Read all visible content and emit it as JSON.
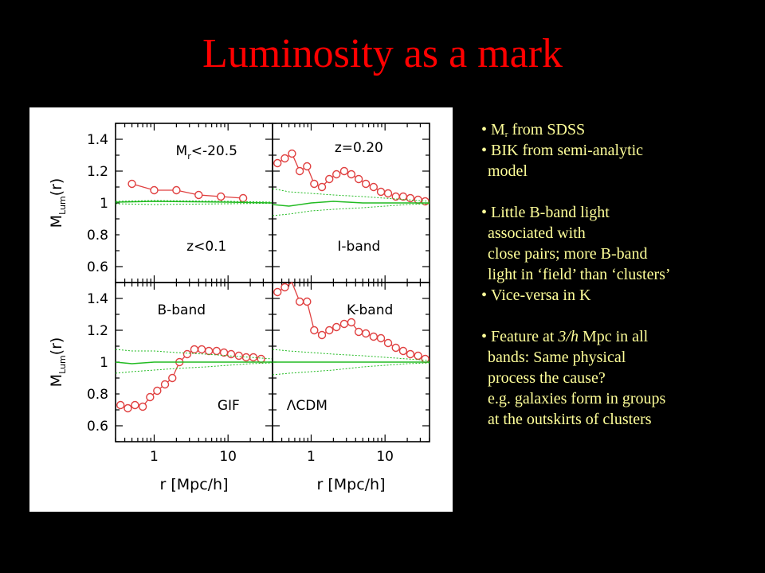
{
  "title": "Luminosity as a mark",
  "bullets": {
    "b1_main": "M",
    "b1_sub": "r",
    "b1_rest": " from SDSS",
    "b2": "BIK from semi-analytic",
    "b2_cont": "model",
    "b3": "Little B-band light",
    "b3_cont": [
      "associated with",
      "close pairs; more B-band",
      "light in ‘field’ than ‘clusters’"
    ],
    "b4": "Vice-versa in K",
    "b5_pre": "Feature at ",
    "b5_em": "3/h",
    "b5_post": " Mpc in all",
    "b5_cont": [
      "bands: Same physical",
      "process the cause?",
      "e.g. galaxies form in groups",
      "at the outskirts of clusters"
    ]
  },
  "colors": {
    "background": "#000000",
    "title": "#ff0000",
    "bullet_text": "#ffff99",
    "points": "#e04040",
    "reference": "#22bb22"
  },
  "chart_data": {
    "type": "line",
    "xlabel": "r [Mpc/h]",
    "ylabel": "M_Lum(r)",
    "xscale": "log",
    "xlim": [
      0.3,
      40
    ],
    "ylim": [
      0.5,
      1.5
    ],
    "x_ticks": [
      "1",
      "10"
    ],
    "y_ticks": [
      "1.4",
      "1.2",
      "1",
      "0.8",
      "0.6"
    ],
    "panels": [
      {
        "id": "mr",
        "labels": [
          "M_r<-20.5",
          "z<0.1"
        ],
        "series": [
          {
            "style": "points",
            "x": [
              0.5,
              1.0,
              2.0,
              4.0,
              8.0,
              16.0
            ],
            "y": [
              1.12,
              1.08,
              1.08,
              1.05,
              1.04,
              1.03
            ]
          },
          {
            "style": "solid",
            "x": [
              0.3,
              1.0,
              10.0,
              40.0
            ],
            "y": [
              1.005,
              1.01,
              1.005,
              1.0
            ]
          },
          {
            "style": "dotted",
            "x": [
              0.3,
              1.0,
              10.0,
              40.0
            ],
            "y": [
              1.01,
              1.015,
              1.01,
              1.005
            ]
          },
          {
            "style": "dotted",
            "x": [
              0.3,
              1.0,
              10.0,
              40.0
            ],
            "y": [
              0.995,
              0.99,
              0.995,
              0.998
            ]
          }
        ]
      },
      {
        "id": "iband",
        "labels": [
          "z=0.20",
          "I-band"
        ],
        "series": [
          {
            "style": "points",
            "x": [
              0.35,
              0.44,
              0.55,
              0.7,
              0.88,
              1.1,
              1.4,
              1.76,
              2.2,
              2.8,
              3.5,
              4.4,
              5.5,
              7.0,
              8.8,
              11.0,
              14.0,
              17.6,
              22.0,
              28.0,
              35.0
            ],
            "y": [
              1.25,
              1.28,
              1.31,
              1.2,
              1.23,
              1.12,
              1.1,
              1.15,
              1.18,
              1.2,
              1.18,
              1.15,
              1.12,
              1.1,
              1.07,
              1.06,
              1.04,
              1.04,
              1.03,
              1.02,
              1.01
            ]
          },
          {
            "style": "solid",
            "x": [
              0.3,
              0.5,
              1.0,
              2.0,
              5.0,
              10.0,
              20.0,
              40.0
            ],
            "y": [
              0.99,
              0.98,
              1.0,
              1.01,
              1.0,
              1.0,
              1.0,
              1.0
            ]
          },
          {
            "style": "dotted",
            "x": [
              0.3,
              0.5,
              1.0,
              2.0,
              5.0,
              10.0,
              20.0,
              40.0
            ],
            "y": [
              1.09,
              1.07,
              1.06,
              1.05,
              1.04,
              1.03,
              1.02,
              1.01
            ]
          },
          {
            "style": "dotted",
            "x": [
              0.3,
              0.5,
              1.0,
              2.0,
              5.0,
              10.0,
              20.0,
              40.0
            ],
            "y": [
              0.92,
              0.93,
              0.95,
              0.96,
              0.97,
              0.98,
              0.99,
              0.995
            ]
          }
        ]
      },
      {
        "id": "bband",
        "labels": [
          "B-band",
          "GIF"
        ],
        "series": [
          {
            "style": "points",
            "x": [
              0.35,
              0.44,
              0.55,
              0.7,
              0.88,
              1.1,
              1.4,
              1.76,
              2.2,
              2.8,
              3.5,
              4.4,
              5.5,
              7.0,
              8.8,
              11.0,
              14.0,
              17.6,
              22.0,
              28.0
            ],
            "y": [
              0.73,
              0.71,
              0.73,
              0.72,
              0.78,
              0.82,
              0.86,
              0.9,
              1.0,
              1.05,
              1.08,
              1.08,
              1.07,
              1.07,
              1.06,
              1.05,
              1.04,
              1.03,
              1.03,
              1.02
            ]
          },
          {
            "style": "solid",
            "x": [
              0.3,
              0.5,
              1.0,
              2.0,
              5.0,
              10.0,
              20.0,
              40.0
            ],
            "y": [
              1.0,
              0.99,
              1.0,
              1.0,
              1.0,
              1.0,
              1.0,
              1.0
            ]
          },
          {
            "style": "dotted",
            "x": [
              0.3,
              0.5,
              1.0,
              2.0,
              5.0,
              10.0,
              20.0,
              40.0
            ],
            "y": [
              1.08,
              1.07,
              1.07,
              1.06,
              1.05,
              1.04,
              1.03,
              1.02
            ]
          },
          {
            "style": "dotted",
            "x": [
              0.3,
              0.5,
              1.0,
              2.0,
              5.0,
              10.0,
              20.0,
              40.0
            ],
            "y": [
              0.93,
              0.94,
              0.95,
              0.96,
              0.97,
              0.98,
              0.99,
              0.995
            ]
          }
        ]
      },
      {
        "id": "kband",
        "labels": [
          "K-band",
          "ΛCDM"
        ],
        "series": [
          {
            "style": "points",
            "x": [
              0.35,
              0.44,
              0.55,
              0.7,
              0.88,
              1.1,
              1.4,
              1.76,
              2.2,
              2.8,
              3.5,
              4.4,
              5.5,
              7.0,
              8.8,
              11.0,
              14.0,
              17.6,
              22.0,
              28.0,
              35.0
            ],
            "y": [
              1.44,
              1.47,
              1.5,
              1.38,
              1.38,
              1.2,
              1.17,
              1.2,
              1.22,
              1.24,
              1.25,
              1.19,
              1.18,
              1.16,
              1.15,
              1.12,
              1.09,
              1.07,
              1.05,
              1.04,
              1.02
            ]
          },
          {
            "style": "solid",
            "x": [
              0.3,
              0.5,
              1.0,
              2.0,
              5.0,
              10.0,
              20.0,
              40.0
            ],
            "y": [
              1.0,
              1.0,
              1.0,
              1.0,
              1.0,
              1.0,
              1.0,
              1.0
            ]
          },
          {
            "style": "dotted",
            "x": [
              0.3,
              0.5,
              1.0,
              2.0,
              5.0,
              10.0,
              20.0,
              40.0
            ],
            "y": [
              1.08,
              1.07,
              1.06,
              1.05,
              1.04,
              1.03,
              1.02,
              1.01
            ]
          },
          {
            "style": "dotted",
            "x": [
              0.3,
              0.5,
              1.0,
              2.0,
              5.0,
              10.0,
              20.0,
              40.0
            ],
            "y": [
              0.92,
              0.93,
              0.94,
              0.95,
              0.97,
              0.98,
              0.99,
              0.995
            ]
          }
        ]
      }
    ]
  }
}
